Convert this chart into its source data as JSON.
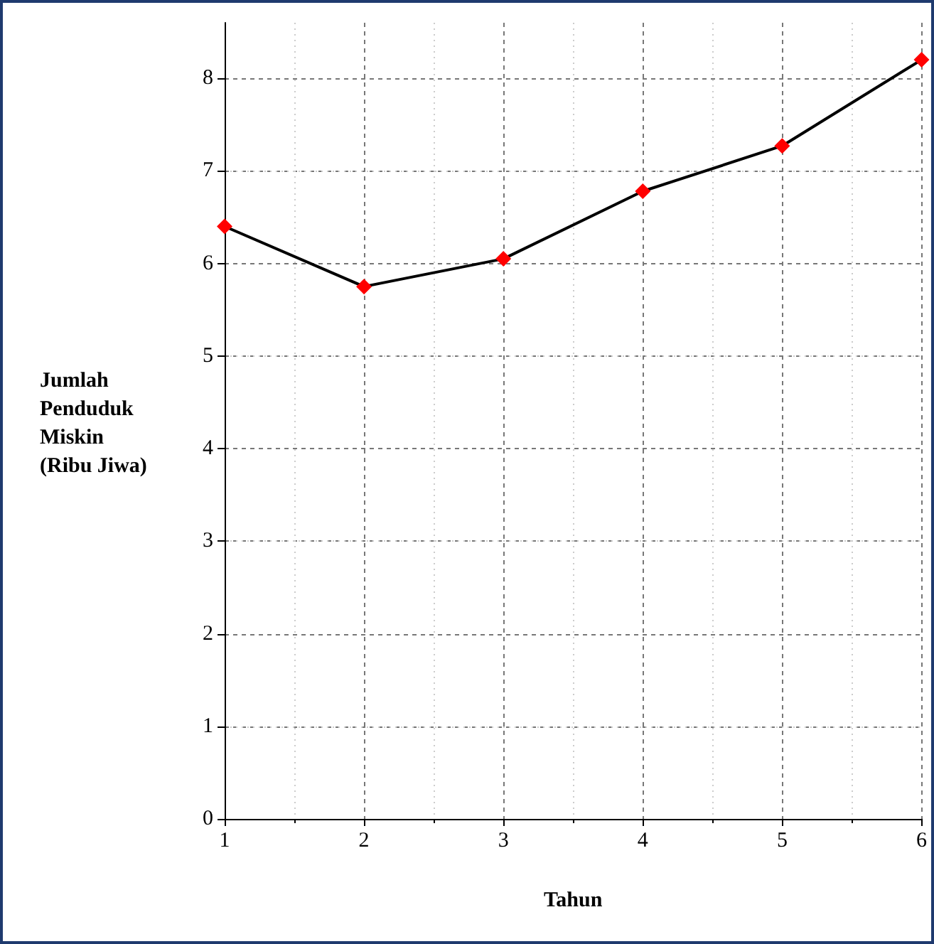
{
  "chart_data": {
    "type": "line",
    "xlabel": "Tahun",
    "ylabel": "Jumlah\nPenduduk\nMiskin\n(Ribu Jiwa)",
    "x": [
      1,
      2,
      3,
      4,
      5,
      6
    ],
    "series": [
      {
        "color": "#000000",
        "colors": [
          "#ff0000",
          "#ff0000",
          "#ff0000",
          "#ff0000",
          "#ff0000",
          "#ff0000"
        ],
        "values": [
          6.4,
          5.75,
          6.05,
          6.78,
          7.27,
          8.2
        ]
      }
    ],
    "xlim": [
      1,
      6
    ],
    "xticks": [
      1,
      2,
      3,
      4,
      5,
      6
    ],
    "ylim": [
      0,
      8.6
    ],
    "yticks": [
      0,
      1,
      2,
      3,
      4,
      5,
      6,
      7,
      8
    ],
    "grid": true,
    "marker": "diamond",
    "line_style": "solid"
  }
}
